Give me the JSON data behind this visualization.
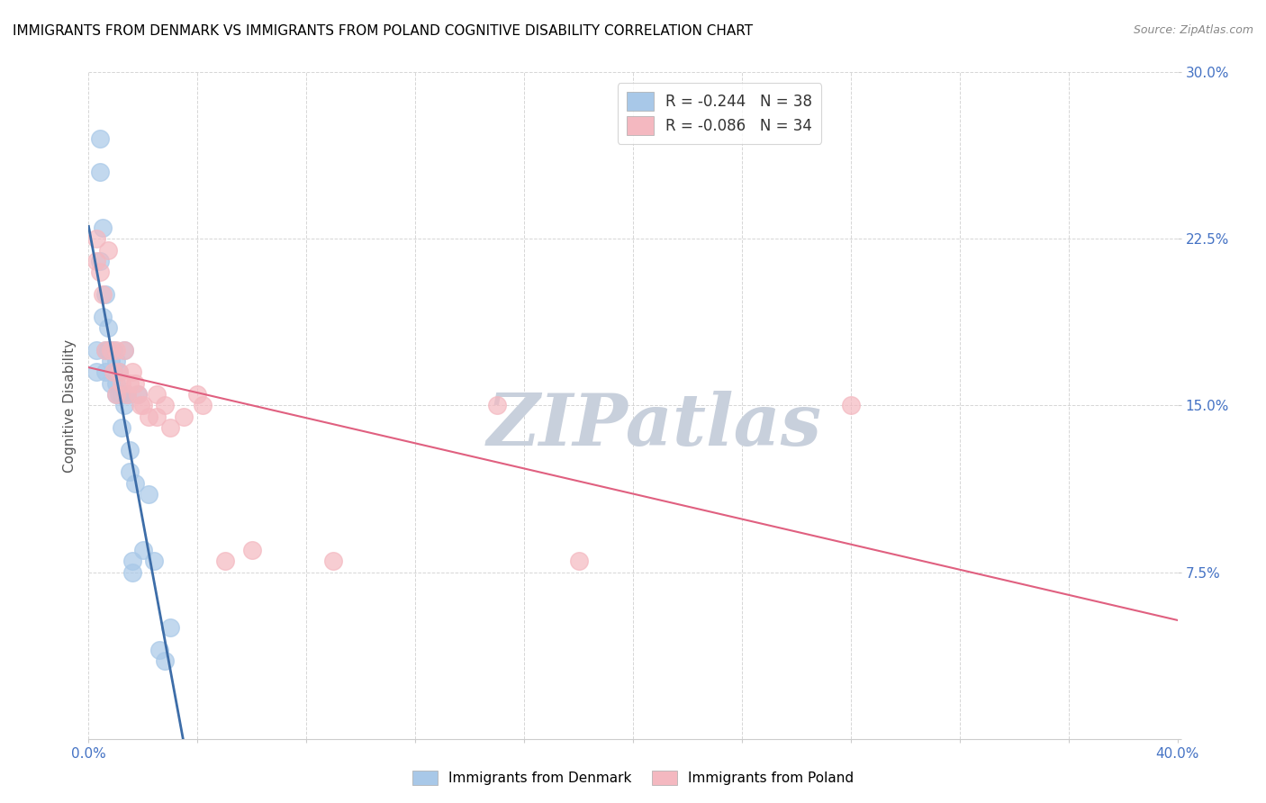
{
  "title": "IMMIGRANTS FROM DENMARK VS IMMIGRANTS FROM POLAND COGNITIVE DISABILITY CORRELATION CHART",
  "source": "Source: ZipAtlas.com",
  "ylabel": "Cognitive Disability",
  "xlim": [
    0.0,
    0.4
  ],
  "ylim": [
    0.0,
    0.3
  ],
  "xticks": [
    0.0,
    0.04,
    0.08,
    0.12,
    0.16,
    0.2,
    0.24,
    0.28,
    0.32,
    0.36,
    0.4
  ],
  "yticks": [
    0.0,
    0.075,
    0.15,
    0.225,
    0.3
  ],
  "ytick_labels": [
    "",
    "7.5%",
    "15.0%",
    "22.5%",
    "30.0%"
  ],
  "legend_entries": [
    {
      "label": "R = -0.244   N = 38",
      "color": "#a8c8e8"
    },
    {
      "label": "R = -0.086   N = 34",
      "color": "#f4b8c0"
    }
  ],
  "denmark_x": [
    0.003,
    0.003,
    0.004,
    0.004,
    0.004,
    0.005,
    0.005,
    0.006,
    0.006,
    0.006,
    0.007,
    0.007,
    0.008,
    0.008,
    0.009,
    0.009,
    0.01,
    0.01,
    0.01,
    0.011,
    0.011,
    0.012,
    0.012,
    0.013,
    0.013,
    0.014,
    0.015,
    0.015,
    0.016,
    0.016,
    0.017,
    0.018,
    0.02,
    0.022,
    0.024,
    0.026,
    0.028,
    0.03
  ],
  "denmark_y": [
    0.175,
    0.165,
    0.27,
    0.255,
    0.215,
    0.23,
    0.19,
    0.175,
    0.165,
    0.2,
    0.185,
    0.175,
    0.17,
    0.16,
    0.175,
    0.165,
    0.16,
    0.155,
    0.17,
    0.165,
    0.155,
    0.155,
    0.14,
    0.15,
    0.175,
    0.155,
    0.13,
    0.12,
    0.08,
    0.075,
    0.115,
    0.155,
    0.085,
    0.11,
    0.08,
    0.04,
    0.035,
    0.05
  ],
  "poland_x": [
    0.003,
    0.003,
    0.004,
    0.005,
    0.006,
    0.007,
    0.008,
    0.009,
    0.01,
    0.01,
    0.011,
    0.012,
    0.013,
    0.014,
    0.015,
    0.016,
    0.017,
    0.018,
    0.019,
    0.02,
    0.022,
    0.025,
    0.025,
    0.028,
    0.03,
    0.035,
    0.04,
    0.042,
    0.05,
    0.06,
    0.09,
    0.15,
    0.18,
    0.28
  ],
  "poland_y": [
    0.225,
    0.215,
    0.21,
    0.2,
    0.175,
    0.22,
    0.175,
    0.165,
    0.175,
    0.155,
    0.165,
    0.16,
    0.175,
    0.155,
    0.16,
    0.165,
    0.16,
    0.155,
    0.15,
    0.15,
    0.145,
    0.155,
    0.145,
    0.15,
    0.14,
    0.145,
    0.155,
    0.15,
    0.08,
    0.085,
    0.08,
    0.15,
    0.08,
    0.15
  ],
  "denmark_color": "#a8c8e8",
  "poland_color": "#f4b8c0",
  "denmark_line_color": "#3d6da8",
  "poland_line_color": "#e06080",
  "bg_color": "#ffffff",
  "grid_color": "#cccccc",
  "axis_label_color": "#4472c4",
  "title_color": "#000000",
  "watermark_text": "ZIPatlas",
  "watermark_color": "#c8d0dc"
}
